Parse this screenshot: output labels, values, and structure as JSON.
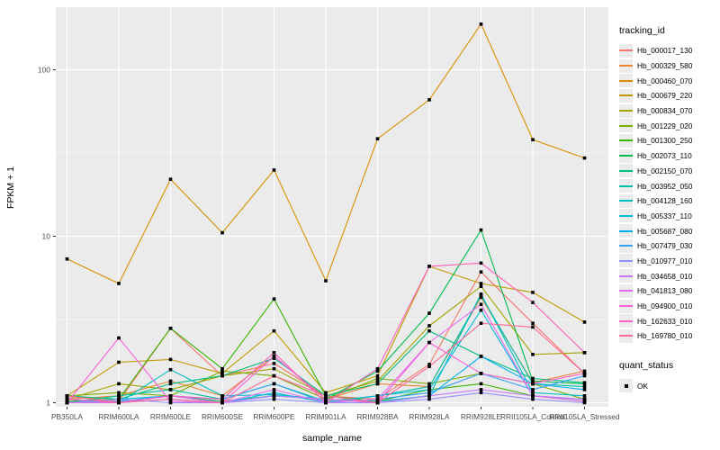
{
  "chart_data": {
    "type": "line",
    "title": "",
    "xlabel": "sample_name",
    "ylabel": "FPKM + 1",
    "y_scale": "log10",
    "y_ticks": [
      1,
      10,
      100
    ],
    "y_minor_ticks": [
      3.1623,
      31.623
    ],
    "ylim": [
      0.95,
      235
    ],
    "grid": "on",
    "legend_position": "right",
    "legend_title": "tracking_id",
    "panel_bg": "#EBEBEB",
    "grid_color": "#FFFFFF",
    "axis_text_color": "#4D4D4D",
    "point_color": "#000000",
    "point_shape": "square",
    "categories": [
      "PB350LA",
      "RRIM600LA",
      "RRIM600LE",
      "RRIM600SE",
      "RRIM600PE",
      "RRIM901LA",
      "RRIM928BA",
      "RRIM928LA",
      "RRIM928LE",
      "RRII105LA_Control",
      "RRII105LA_Stressed"
    ],
    "series": [
      {
        "name": "Hb_000017_130",
        "color": "#F8766D",
        "values": [
          1.1,
          1.02,
          2.8,
          1.45,
          1.72,
          1.1,
          1.05,
          1.7,
          6.1,
          3.0,
          1.5
        ]
      },
      {
        "name": "Hb_000329_580",
        "color": "#EA8331",
        "values": [
          1.05,
          1.1,
          1.35,
          1.1,
          1.9,
          1.05,
          1.3,
          1.25,
          4.3,
          1.32,
          1.55
        ]
      },
      {
        "name": "Hb_000460_070",
        "color": "#D89000",
        "values": [
          7.3,
          5.2,
          22,
          10.5,
          25,
          5.4,
          38.5,
          66,
          188,
          38,
          29.5
        ]
      },
      {
        "name": "Hb_000679_220",
        "color": "#C09B00",
        "values": [
          1.1,
          1.75,
          1.82,
          1.5,
          2.7,
          1.15,
          1.45,
          6.6,
          5.2,
          4.6,
          3.05
        ]
      },
      {
        "name": "Hb_000834_070",
        "color": "#A3A500",
        "values": [
          1.05,
          1.3,
          1.2,
          1.45,
          1.6,
          1.1,
          1.35,
          2.9,
          5.0,
          1.95,
          2.0
        ]
      },
      {
        "name": "Hb_001229_020",
        "color": "#7CAE00",
        "values": [
          1.1,
          1.15,
          1.1,
          1.55,
          1.45,
          1.05,
          1.4,
          1.3,
          1.5,
          1.3,
          1.05
        ]
      },
      {
        "name": "Hb_001300_250",
        "color": "#39B600",
        "values": [
          1.02,
          1.05,
          2.8,
          1.6,
          4.2,
          1.1,
          1.02,
          1.2,
          1.3,
          1.1,
          1.02
        ]
      },
      {
        "name": "Hb_002073_110",
        "color": "#00BB4E",
        "values": [
          1.05,
          1.0,
          1.1,
          1.02,
          1.1,
          1.05,
          1.55,
          3.45,
          10.9,
          1.35,
          1.3
        ]
      },
      {
        "name": "Hb_002150_070",
        "color": "#00BF7D",
        "values": [
          1.1,
          1.05,
          1.3,
          1.45,
          1.85,
          1.1,
          1.3,
          2.7,
          1.9,
          1.4,
          1.32
        ]
      },
      {
        "name": "Hb_003952_050",
        "color": "#00C1A3",
        "values": [
          1.0,
          1.1,
          1.2,
          1.05,
          1.3,
          1.02,
          1.1,
          1.25,
          4.4,
          1.3,
          1.25
        ]
      },
      {
        "name": "Hb_004128_160",
        "color": "#00BFC4",
        "values": [
          1.05,
          1.0,
          1.58,
          1.1,
          1.12,
          1.05,
          1.02,
          1.1,
          4.5,
          1.15,
          1.1
        ]
      },
      {
        "name": "Hb_005337_110",
        "color": "#00BAE0",
        "values": [
          1.0,
          1.05,
          1.1,
          1.0,
          1.15,
          1.0,
          1.1,
          1.2,
          3.6,
          1.1,
          1.05
        ]
      },
      {
        "name": "Hb_005687_080",
        "color": "#00B0F6",
        "values": [
          1.05,
          1.0,
          1.05,
          1.0,
          1.1,
          1.05,
          1.0,
          1.1,
          1.9,
          1.3,
          1.2
        ]
      },
      {
        "name": "Hb_007479_030",
        "color": "#35A2FF",
        "values": [
          1.0,
          1.02,
          1.1,
          1.05,
          1.3,
          1.0,
          1.05,
          1.15,
          1.5,
          1.2,
          1.45
        ]
      },
      {
        "name": "Hb_010977_010",
        "color": "#9590FF",
        "values": [
          1.0,
          1.05,
          1.0,
          1.0,
          1.05,
          1.0,
          1.0,
          1.05,
          1.15,
          1.05,
          1.0
        ]
      },
      {
        "name": "Hb_034658_010",
        "color": "#C77CFF",
        "values": [
          1.05,
          1.0,
          1.05,
          1.0,
          1.1,
          1.05,
          1.0,
          1.1,
          1.2,
          1.1,
          1.05
        ]
      },
      {
        "name": "Hb_041813_080",
        "color": "#E76BF3",
        "values": [
          1.0,
          1.0,
          1.1,
          1.0,
          1.2,
          1.0,
          1.05,
          2.3,
          3.9,
          1.1,
          1.02
        ]
      },
      {
        "name": "Hb_094900_010",
        "color": "#FA62DB",
        "values": [
          1.0,
          2.45,
          1.02,
          1.0,
          1.9,
          1.05,
          1.0,
          2.3,
          1.5,
          1.3,
          1.5
        ]
      },
      {
        "name": "Hb_162633_010",
        "color": "#FF62BC",
        "values": [
          1.05,
          1.0,
          1.1,
          1.05,
          2.0,
          1.0,
          1.6,
          6.6,
          6.9,
          4.0,
          2.0
        ]
      },
      {
        "name": "Hb_169780_010",
        "color": "#FF6A98",
        "values": [
          1.1,
          1.0,
          1.05,
          1.0,
          1.45,
          1.1,
          1.0,
          1.65,
          3.0,
          2.85,
          1.5
        ]
      }
    ],
    "quant_legend": {
      "title": "quant_status",
      "items": [
        "OK"
      ]
    }
  }
}
